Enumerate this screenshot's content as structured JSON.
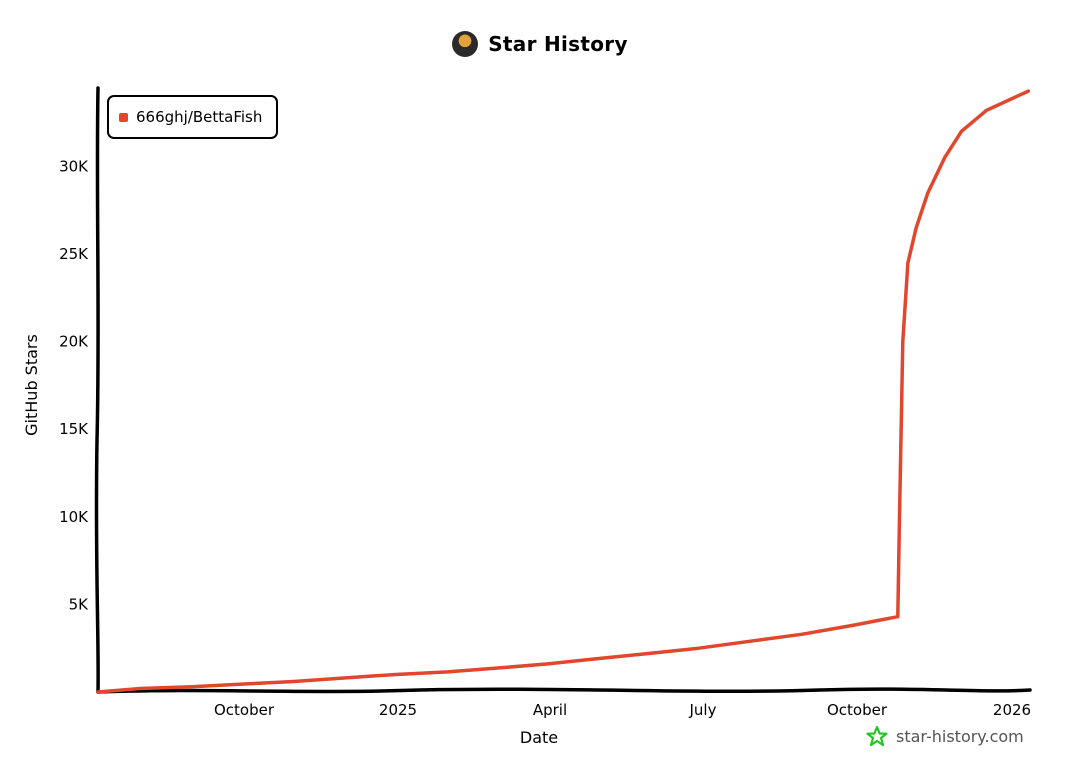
{
  "header": {
    "title": "Star History",
    "avatar": "user-avatar"
  },
  "legend": {
    "items": [
      {
        "label": "666ghj/BettaFish",
        "color": "#e0472d"
      }
    ]
  },
  "watermark": {
    "label": "star-history.com",
    "icon": "star-icon",
    "icon_color": "#22c522"
  },
  "chart_data": {
    "type": "line",
    "title": "Star History",
    "xlabel": "Date",
    "ylabel": "GitHub Stars",
    "x_tick_labels": [
      "October",
      "2025",
      "April",
      "July",
      "October",
      "2026"
    ],
    "y_tick_labels": [
      "5K",
      "10K",
      "15K",
      "20K",
      "25K",
      "30K"
    ],
    "y_tick_values": [
      5000,
      10000,
      15000,
      20000,
      25000,
      30000
    ],
    "ylim": [
      0,
      34500
    ],
    "xlim": [
      "2024-07-07",
      "2026-01-15"
    ],
    "grid": false,
    "legend_position": "top-left",
    "series": [
      {
        "name": "666ghj/BettaFish",
        "color": "#e0472d",
        "x": [
          "2024-07-07",
          "2024-08-01",
          "2024-09-01",
          "2024-10-01",
          "2024-11-01",
          "2024-12-01",
          "2025-01-01",
          "2025-02-01",
          "2025-03-01",
          "2025-04-01",
          "2025-05-01",
          "2025-06-01",
          "2025-07-01",
          "2025-08-01",
          "2025-09-01",
          "2025-10-01",
          "2025-10-28",
          "2025-10-29",
          "2025-10-31",
          "2025-11-03",
          "2025-11-08",
          "2025-11-15",
          "2025-11-25",
          "2025-12-05",
          "2025-12-20",
          "2026-01-14"
        ],
        "values": [
          0,
          200,
          300,
          450,
          600,
          800,
          1000,
          1150,
          1350,
          1600,
          1900,
          2200,
          2500,
          2900,
          3300,
          3800,
          4300,
          10000,
          20000,
          24500,
          26500,
          28500,
          30500,
          32000,
          33200,
          34300
        ]
      }
    ]
  }
}
